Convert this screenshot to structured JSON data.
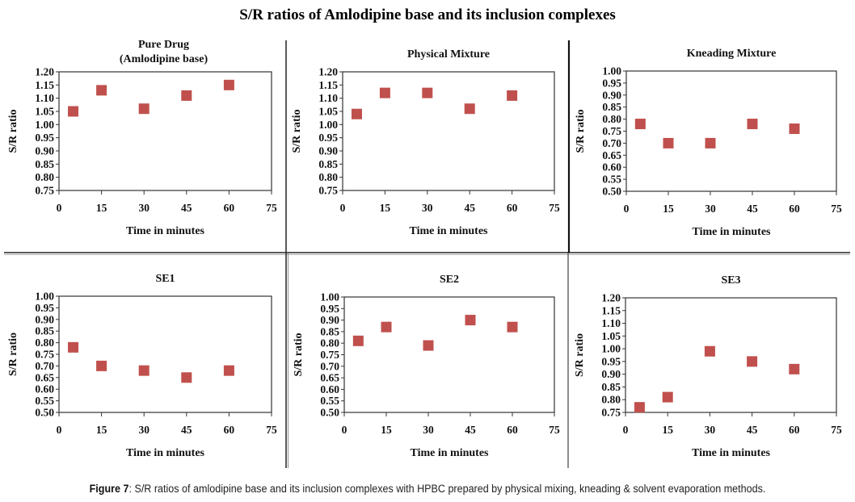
{
  "title": "S/R ratios of Amlodipine base and its inclusion complexes",
  "caption": {
    "label": "Figure 7",
    "text": ": S/R ratios of amlodipine base and its inclusion complexes with HPBC prepared by physical mixing, kneading & solvent evaporation methods."
  },
  "marker_color": "#C0504D",
  "chart_data": [
    {
      "type": "scatter",
      "title": "Pure Drug",
      "subtitle": "(Amlodipine base)",
      "xlabel": "Time in minutes",
      "ylabel": "S/R  ratio",
      "x": [
        5,
        15,
        30,
        45,
        60
      ],
      "y": [
        1.05,
        1.13,
        1.06,
        1.11,
        1.15
      ],
      "xlim": [
        0,
        75
      ],
      "xticks": [
        "0",
        "15",
        "30",
        "45",
        "60",
        "75"
      ],
      "ylim": [
        0.75,
        1.2
      ],
      "yticks": [
        "0.75",
        "0.80",
        "0.85",
        "0.90",
        "0.95",
        "1.00",
        "1.05",
        "1.10",
        "1.15",
        "1.20"
      ],
      "grid": false,
      "legend": "none"
    },
    {
      "type": "scatter",
      "title": "Physical Mixture",
      "subtitle": "",
      "xlabel": "Time in minutes",
      "ylabel": "S/R  ratio",
      "x": [
        5,
        15,
        30,
        45,
        60
      ],
      "y": [
        1.04,
        1.12,
        1.12,
        1.06,
        1.11
      ],
      "xlim": [
        0,
        75
      ],
      "xticks": [
        "0",
        "15",
        "30",
        "45",
        "60",
        "75"
      ],
      "ylim": [
        0.75,
        1.2
      ],
      "yticks": [
        "0.75",
        "0.80",
        "0.85",
        "0.90",
        "0.95",
        "1.00",
        "1.05",
        "1.10",
        "1.15",
        "1.20"
      ],
      "grid": false,
      "legend": "none"
    },
    {
      "type": "scatter",
      "title": "Kneading Mixture",
      "subtitle": "",
      "xlabel": "Time in minutes",
      "ylabel": "S/R  ratio",
      "x": [
        5,
        15,
        30,
        45,
        60
      ],
      "y": [
        0.78,
        0.7,
        0.7,
        0.78,
        0.76
      ],
      "xlim": [
        0,
        75
      ],
      "xticks": [
        "0",
        "15",
        "30",
        "45",
        "60",
        "75"
      ],
      "ylim": [
        0.5,
        1.0
      ],
      "yticks": [
        "0.50",
        "0.55",
        "0.60",
        "0.65",
        "0.70",
        "0.75",
        "0.80",
        "0.85",
        "0.90",
        "0.95",
        "1.00"
      ],
      "grid": false,
      "legend": "none"
    },
    {
      "type": "scatter",
      "title": "SE1",
      "subtitle": "",
      "xlabel": "Time in minutes",
      "ylabel": "S/R  ratio",
      "x": [
        5,
        15,
        30,
        45,
        60
      ],
      "y": [
        0.78,
        0.7,
        0.68,
        0.65,
        0.68
      ],
      "xlim": [
        0,
        75
      ],
      "xticks": [
        "0",
        "15",
        "30",
        "45",
        "60",
        "75"
      ],
      "ylim": [
        0.5,
        1.0
      ],
      "yticks": [
        "0.50",
        "0.55",
        "0.60",
        "0.65",
        "0.70",
        "0.75",
        "0.80",
        "0.85",
        "0.90",
        "0.95",
        "1.00"
      ],
      "grid": false,
      "legend": "none"
    },
    {
      "type": "scatter",
      "title": "SE2",
      "subtitle": "",
      "xlabel": "Time in minutes",
      "ylabel": "S/R  ratio",
      "x": [
        5,
        15,
        30,
        45,
        60
      ],
      "y": [
        0.81,
        0.87,
        0.79,
        0.9,
        0.87
      ],
      "xlim": [
        0,
        75
      ],
      "xticks": [
        "0",
        "15",
        "30",
        "45",
        "60",
        "75"
      ],
      "ylim": [
        0.5,
        1.0
      ],
      "yticks": [
        "0.50",
        "0.55",
        "0.60",
        "0.65",
        "0.70",
        "0.75",
        "0.80",
        "0.85",
        "0.90",
        "0.95",
        "1.00"
      ],
      "grid": false,
      "legend": "none"
    },
    {
      "type": "scatter",
      "title": "SE3",
      "subtitle": "",
      "xlabel": "Time in minutes",
      "ylabel": "S/R  ratio",
      "x": [
        5,
        15,
        30,
        45,
        60
      ],
      "y": [
        0.77,
        0.81,
        0.99,
        0.95,
        0.92
      ],
      "xlim": [
        0,
        75
      ],
      "xticks": [
        "0",
        "15",
        "30",
        "45",
        "60",
        "75"
      ],
      "ylim": [
        0.75,
        1.2
      ],
      "yticks": [
        "0.75",
        "0.80",
        "0.85",
        "0.90",
        "0.95",
        "1.00",
        "1.05",
        "1.10",
        "1.15",
        "1.20"
      ],
      "grid": false,
      "legend": "none"
    }
  ]
}
